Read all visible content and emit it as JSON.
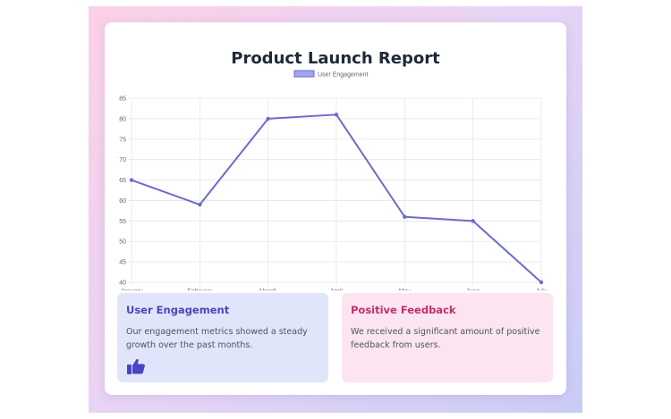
{
  "report": {
    "title": "Product Launch Report"
  },
  "chart_data": {
    "type": "line",
    "categories": [
      "January",
      "February",
      "March",
      "April",
      "May",
      "June",
      "July"
    ],
    "series": [
      {
        "name": "User Engagement",
        "values": [
          65,
          59,
          80,
          81,
          56,
          55,
          40
        ]
      }
    ],
    "title": "",
    "xlabel": "",
    "ylabel": "",
    "ylim": [
      40,
      85
    ],
    "yticks": [
      40,
      45,
      50,
      55,
      60,
      65,
      70,
      75,
      80,
      85
    ],
    "grid": true,
    "legend": "top-center",
    "colors": {
      "line": "#6b6bcc",
      "legend_fill": "#a3a6ee"
    }
  },
  "cards": [
    {
      "title": "User Engagement",
      "text": "Our engagement metrics showed a steady growth over the past months.",
      "icon": "thumbs-up-icon"
    },
    {
      "title": "Positive Feedback",
      "text": "We received a significant amount of positive feedback from users."
    }
  ]
}
